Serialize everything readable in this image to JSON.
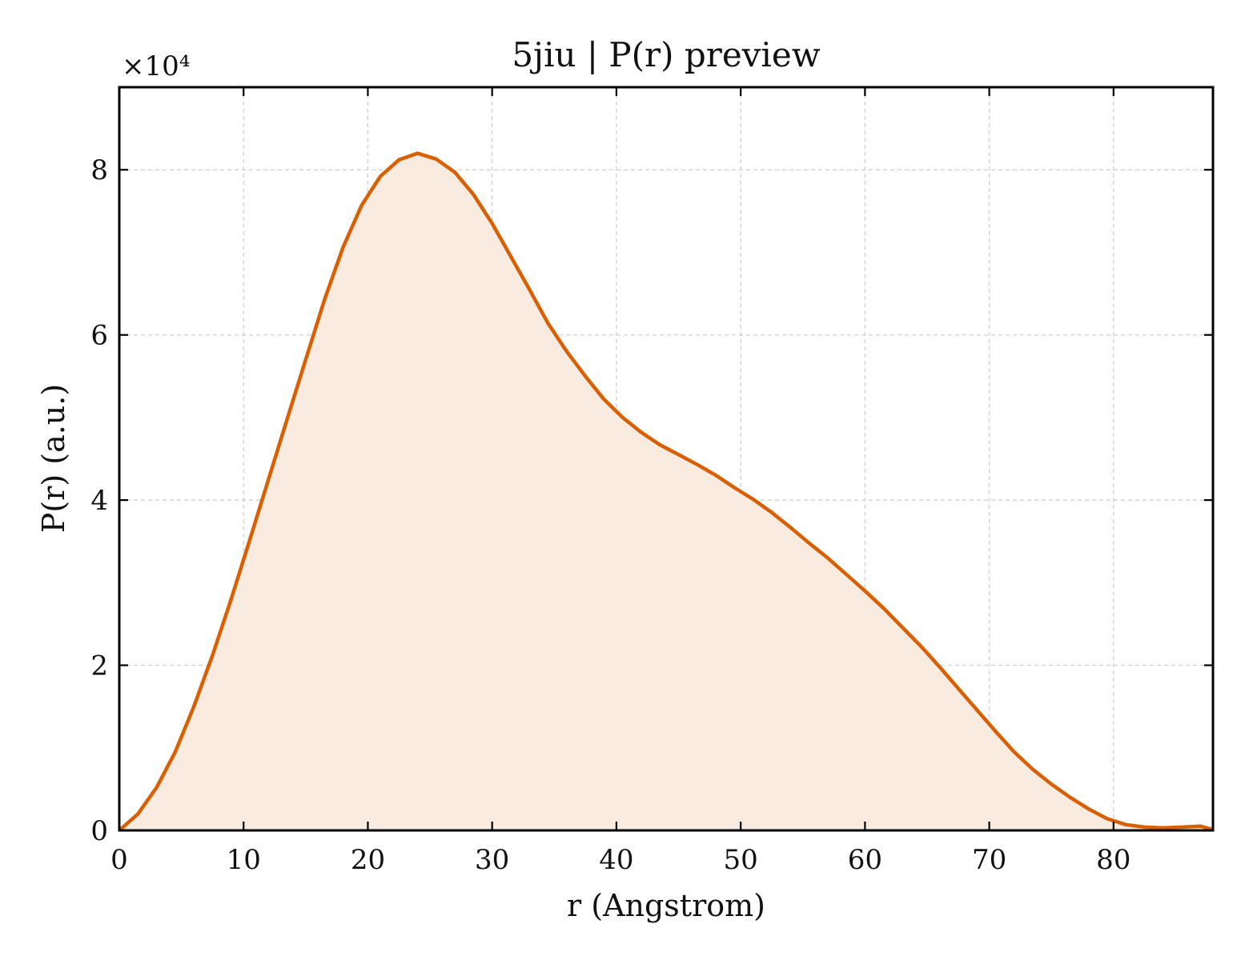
{
  "chart_data": {
    "type": "area",
    "title": "5jiu | P(r) preview",
    "xlabel": "r (Angstrom)",
    "ylabel": "P(r) (a.u.)",
    "y_multiplier_label": "×10⁴",
    "y_multiplier": 10000,
    "xlim": [
      0,
      88
    ],
    "ylim": [
      0,
      9
    ],
    "x_ticks": [
      0,
      10,
      20,
      30,
      40,
      50,
      60,
      70,
      80
    ],
    "y_ticks": [
      0,
      2,
      4,
      6,
      8
    ],
    "grid": true,
    "line_color": "#d95f02",
    "fill_color": "#f9ebe0",
    "series": [
      {
        "x": [
          0,
          1.5,
          3,
          4.5,
          6,
          7.5,
          9,
          10.5,
          12,
          13.5,
          15,
          16.5,
          18,
          19.5,
          21,
          22.5,
          24,
          25.5,
          27,
          28.5,
          30,
          31.5,
          33,
          34.5,
          36,
          37.5,
          39,
          40.5,
          42,
          43.5,
          45,
          46.5,
          48,
          49.5,
          51,
          52.5,
          54,
          55.5,
          57,
          58.5,
          60,
          61.5,
          63,
          64.5,
          66,
          67.5,
          69,
          70.5,
          72,
          73.5,
          75,
          76.5,
          78,
          79.5,
          81,
          82.5,
          84,
          85.5,
          87,
          88
        ],
        "y": [
          0,
          0.2,
          0.52,
          0.95,
          1.5,
          2.12,
          2.8,
          3.52,
          4.25,
          4.98,
          5.7,
          6.42,
          7.06,
          7.57,
          7.92,
          8.12,
          8.2,
          8.13,
          7.97,
          7.7,
          7.35,
          6.95,
          6.55,
          6.14,
          5.8,
          5.5,
          5.22,
          5.0,
          4.82,
          4.67,
          4.55,
          4.43,
          4.3,
          4.15,
          4.01,
          3.85,
          3.67,
          3.48,
          3.3,
          3.1,
          2.9,
          2.69,
          2.46,
          2.23,
          1.98,
          1.72,
          1.46,
          1.2,
          0.95,
          0.74,
          0.56,
          0.4,
          0.26,
          0.14,
          0.07,
          0.04,
          0.03,
          0.04,
          0.05,
          0.01
        ]
      }
    ]
  }
}
